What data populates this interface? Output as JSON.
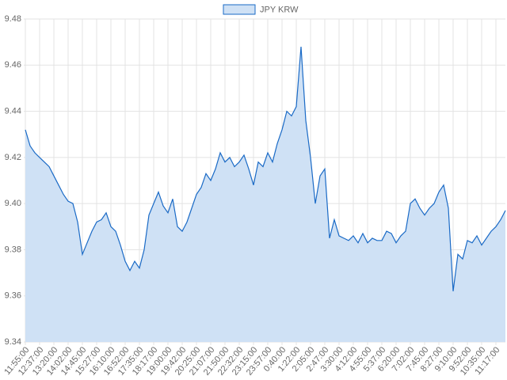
{
  "chart_data": {
    "type": "area",
    "categories": [
      "11:55:00",
      null,
      null,
      "12:37:00",
      null,
      null,
      "13:20:00",
      null,
      null,
      "14:02:00",
      null,
      null,
      "14:45:00",
      null,
      null,
      "15:27:00",
      null,
      null,
      "16:10:00",
      null,
      null,
      "16:52:00",
      null,
      null,
      "17:35:00",
      null,
      null,
      "18:17:00",
      null,
      null,
      "19:00:00",
      null,
      null,
      "19:42:00",
      null,
      null,
      "20:25:00",
      null,
      null,
      "21:07:00",
      null,
      null,
      "21:50:00",
      null,
      null,
      "22:32:00",
      null,
      null,
      "23:15:00",
      null,
      null,
      "23:57:00",
      null,
      null,
      "0:40:00",
      null,
      null,
      "1:22:00",
      null,
      null,
      "2:05:00",
      null,
      null,
      "2:47:00",
      null,
      null,
      "3:30:00",
      null,
      null,
      "4:12:00",
      null,
      null,
      "4:55:00",
      null,
      null,
      "5:37:00",
      null,
      null,
      "6:20:00",
      null,
      null,
      "7:02:00",
      null,
      null,
      "7:45:00",
      null,
      null,
      "8:27:00",
      null,
      null,
      "9:10:00",
      null,
      null,
      "9:52:00",
      null,
      null,
      "10:35:00",
      null,
      null,
      "11:17:00",
      null,
      null
    ],
    "series": [
      {
        "name": "JPY KRW",
        "color": "#1a6ac6",
        "fill": "#cfe1f5",
        "values": [
          9.432,
          9.425,
          9.422,
          9.42,
          9.418,
          9.416,
          9.412,
          9.408,
          9.404,
          9.401,
          9.4,
          9.392,
          9.378,
          9.383,
          9.388,
          9.392,
          9.393,
          9.396,
          9.39,
          9.388,
          9.382,
          9.375,
          9.371,
          9.375,
          9.372,
          9.38,
          9.395,
          9.4,
          9.405,
          9.399,
          9.396,
          9.402,
          9.39,
          9.388,
          9.392,
          9.398,
          9.404,
          9.407,
          9.413,
          9.41,
          9.415,
          9.422,
          9.418,
          9.42,
          9.416,
          9.418,
          9.421,
          9.415,
          9.408,
          9.418,
          9.416,
          9.422,
          9.418,
          9.426,
          9.432,
          9.44,
          9.438,
          9.442,
          9.468,
          9.436,
          9.42,
          9.4,
          9.412,
          9.415,
          9.385,
          9.393,
          9.386,
          9.385,
          9.384,
          9.386,
          9.383,
          9.387,
          9.383,
          9.385,
          9.384,
          9.384,
          9.388,
          9.387,
          9.383,
          9.386,
          9.388,
          9.4,
          9.402,
          9.398,
          9.395,
          9.398,
          9.4,
          9.405,
          9.408,
          9.398,
          9.362,
          9.378,
          9.376,
          9.384,
          9.383,
          9.386,
          9.382,
          9.385,
          9.388,
          9.39,
          9.393,
          9.397
        ]
      }
    ],
    "ylim": [
      9.34,
      9.48
    ],
    "yticks": [
      9.34,
      9.36,
      9.38,
      {
        "value": 9.4,
        "label": "9.40"
      },
      9.42,
      9.44,
      9.46,
      9.48
    ],
    "grid": true,
    "legend": "top"
  }
}
